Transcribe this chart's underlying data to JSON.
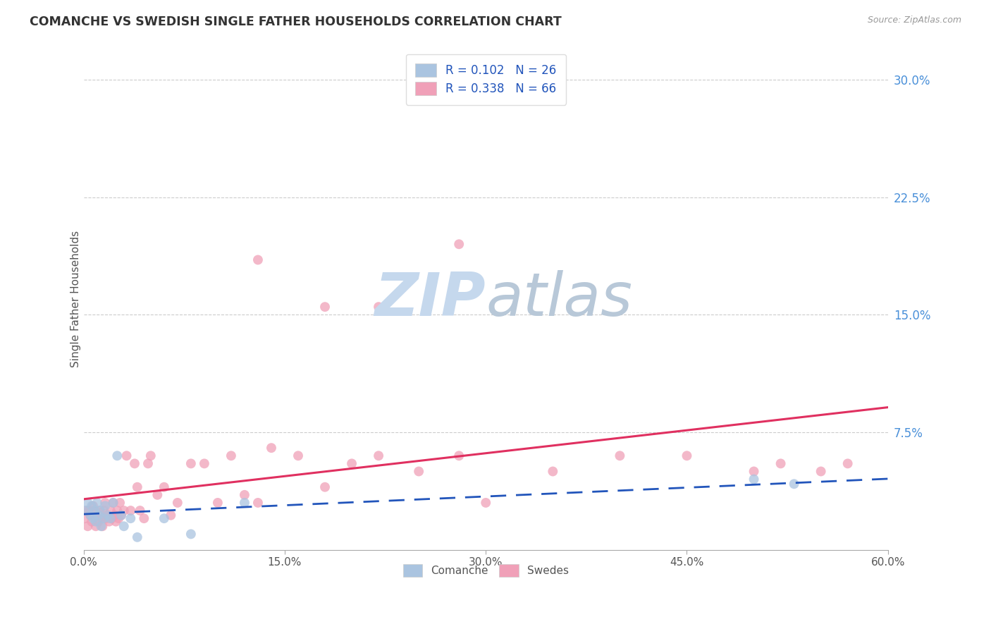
{
  "title": "COMANCHE VS SWEDISH SINGLE FATHER HOUSEHOLDS CORRELATION CHART",
  "source": "Source: ZipAtlas.com",
  "ylabel": "Single Father Households",
  "xlim": [
    0.0,
    0.6
  ],
  "ylim": [
    0.0,
    0.32
  ],
  "xticks": [
    0.0,
    0.15,
    0.3,
    0.45,
    0.6
  ],
  "xtick_labels": [
    "0.0%",
    "15.0%",
    "30.0%",
    "45.0%",
    "60.0%"
  ],
  "yticks": [
    0.0,
    0.075,
    0.15,
    0.225,
    0.3
  ],
  "ytick_labels": [
    "",
    "7.5%",
    "15.0%",
    "22.5%",
    "30.0%"
  ],
  "comanche_R": 0.102,
  "comanche_N": 26,
  "swedes_R": 0.338,
  "swedes_N": 66,
  "comanche_color": "#aac4e0",
  "swedes_color": "#f0a0b8",
  "comanche_line_color": "#2255bb",
  "swedes_line_color": "#e03060",
  "title_color": "#333333",
  "legend_text_color": "#2255bb",
  "watermark_color": "#c5d8ed",
  "comanche_x": [
    0.001,
    0.003,
    0.005,
    0.006,
    0.007,
    0.008,
    0.009,
    0.01,
    0.011,
    0.012,
    0.013,
    0.015,
    0.016,
    0.018,
    0.02,
    0.022,
    0.025,
    0.028,
    0.03,
    0.035,
    0.04,
    0.06,
    0.08,
    0.12,
    0.5,
    0.53
  ],
  "comanche_y": [
    0.025,
    0.03,
    0.022,
    0.028,
    0.02,
    0.025,
    0.018,
    0.03,
    0.022,
    0.025,
    0.015,
    0.02,
    0.028,
    0.022,
    0.02,
    0.03,
    0.06,
    0.022,
    0.015,
    0.02,
    0.008,
    0.02,
    0.01,
    0.03,
    0.045,
    0.042
  ],
  "swedes_x": [
    0.001,
    0.002,
    0.003,
    0.004,
    0.005,
    0.006,
    0.007,
    0.008,
    0.009,
    0.01,
    0.011,
    0.012,
    0.013,
    0.014,
    0.015,
    0.016,
    0.017,
    0.018,
    0.019,
    0.02,
    0.021,
    0.022,
    0.023,
    0.024,
    0.025,
    0.026,
    0.027,
    0.028,
    0.03,
    0.032,
    0.035,
    0.038,
    0.04,
    0.042,
    0.045,
    0.048,
    0.05,
    0.055,
    0.06,
    0.065,
    0.07,
    0.08,
    0.09,
    0.1,
    0.11,
    0.12,
    0.13,
    0.14,
    0.16,
    0.18,
    0.2,
    0.22,
    0.25,
    0.28,
    0.3,
    0.35,
    0.4,
    0.45,
    0.5,
    0.52,
    0.55,
    0.57,
    0.13,
    0.18,
    0.22,
    0.28
  ],
  "swedes_y": [
    0.02,
    0.025,
    0.015,
    0.025,
    0.022,
    0.018,
    0.028,
    0.025,
    0.015,
    0.022,
    0.018,
    0.025,
    0.02,
    0.015,
    0.025,
    0.03,
    0.02,
    0.022,
    0.018,
    0.025,
    0.02,
    0.03,
    0.022,
    0.018,
    0.025,
    0.02,
    0.03,
    0.022,
    0.025,
    0.06,
    0.025,
    0.055,
    0.04,
    0.025,
    0.02,
    0.055,
    0.06,
    0.035,
    0.04,
    0.022,
    0.03,
    0.055,
    0.055,
    0.03,
    0.06,
    0.035,
    0.03,
    0.065,
    0.06,
    0.04,
    0.055,
    0.06,
    0.05,
    0.06,
    0.03,
    0.05,
    0.06,
    0.06,
    0.05,
    0.055,
    0.05,
    0.055,
    0.185,
    0.155,
    0.155,
    0.195
  ]
}
